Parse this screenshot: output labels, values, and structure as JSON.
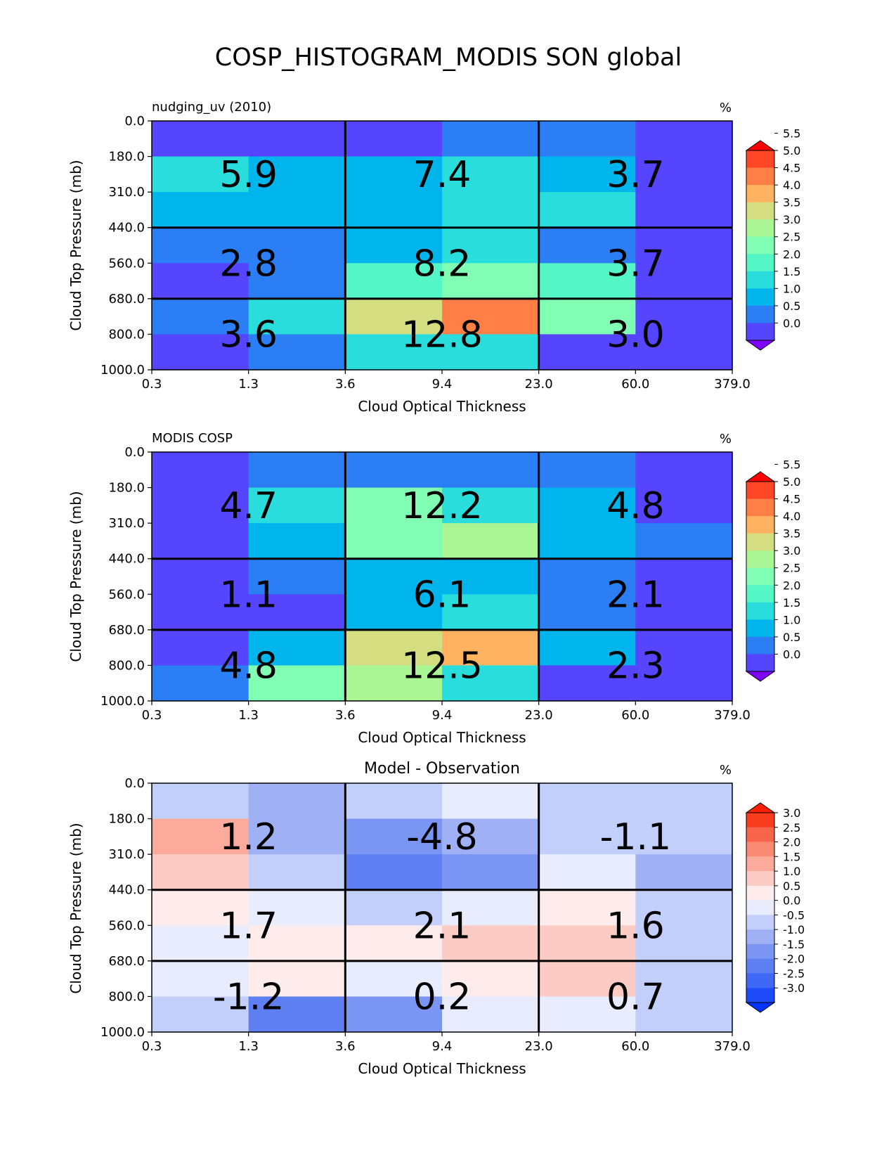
{
  "figure_title": "COSP_HISTOGRAM_MODIS SON global",
  "chart_data": [
    {
      "type": "heatmap",
      "title_left": "nudging_uv (2010)",
      "title_center": "",
      "units": "%",
      "xlabel": "Cloud Optical Thickness",
      "ylabel": "Cloud Top Pressure (mb)",
      "x_ticks": [
        "0.3",
        "1.3",
        "3.6",
        "9.4",
        "23.0",
        "60.0",
        "379.0"
      ],
      "y_ticks": [
        "0.0",
        "180.0",
        "310.0",
        "440.0",
        "560.0",
        "680.0",
        "800.0",
        "1000.0"
      ],
      "grid": [
        [
          0.3,
          0.3,
          0.3,
          0.8,
          0.8,
          0.3
        ],
        [
          1.8,
          1.3,
          1.3,
          1.8,
          1.3,
          0.3
        ],
        [
          1.3,
          1.3,
          1.3,
          1.8,
          1.8,
          0.3
        ],
        [
          0.8,
          0.8,
          1.3,
          1.8,
          0.8,
          0.3
        ],
        [
          0.3,
          0.8,
          2.3,
          2.8,
          2.3,
          0.3
        ],
        [
          0.8,
          1.8,
          3.8,
          4.8,
          2.8,
          0.3
        ],
        [
          0.3,
          0.8,
          1.8,
          1.8,
          0.3,
          0.3
        ]
      ],
      "block_values": [
        "5.9",
        "7.4",
        "3.7",
        "2.8",
        "8.2",
        "3.7",
        "3.6",
        "12.8",
        "3.0"
      ],
      "colorbar": {
        "levels": [
          "5.5",
          "5.0",
          "4.5",
          "4.0",
          "3.5",
          "3.0",
          "2.5",
          "2.0",
          "1.5",
          "1.0",
          "0.5",
          "0.0"
        ],
        "colors": [
          "#8000ff",
          "#5545fe",
          "#2b7ef4",
          "#00b4ec",
          "#2adddd",
          "#55f6c5",
          "#80ffb4",
          "#aaf695",
          "#d4dd80",
          "#ffb360",
          "#ff7f46",
          "#ff4727",
          "#ff0000"
        ]
      }
    },
    {
      "type": "heatmap",
      "title_left": "MODIS COSP",
      "title_center": "",
      "units": "%",
      "xlabel": "Cloud Optical Thickness",
      "ylabel": "Cloud Top Pressure (mb)",
      "x_ticks": [
        "0.3",
        "1.3",
        "3.6",
        "9.4",
        "23.0",
        "60.0",
        "379.0"
      ],
      "y_ticks": [
        "0.0",
        "180.0",
        "310.0",
        "440.0",
        "560.0",
        "680.0",
        "800.0",
        "1000.0"
      ],
      "grid": [
        [
          0.3,
          0.8,
          0.8,
          0.8,
          0.8,
          0.3
        ],
        [
          0.3,
          1.8,
          2.8,
          1.8,
          1.3,
          0.3
        ],
        [
          0.3,
          1.3,
          2.8,
          3.3,
          1.3,
          0.8
        ],
        [
          0.3,
          0.8,
          1.3,
          1.3,
          0.8,
          0.3
        ],
        [
          0.3,
          0.3,
          1.3,
          1.8,
          0.8,
          0.3
        ],
        [
          0.3,
          1.3,
          3.8,
          4.3,
          1.3,
          0.3
        ],
        [
          0.8,
          2.8,
          3.3,
          1.8,
          0.3,
          0.3
        ]
      ],
      "block_values": [
        "4.7",
        "12.2",
        "4.8",
        "1.1",
        "6.1",
        "2.1",
        "4.8",
        "12.5",
        "2.3"
      ],
      "colorbar": {
        "levels": [
          "5.5",
          "5.0",
          "4.5",
          "4.0",
          "3.5",
          "3.0",
          "2.5",
          "2.0",
          "1.5",
          "1.0",
          "0.5",
          "0.0"
        ],
        "colors": [
          "#8000ff",
          "#5545fe",
          "#2b7ef4",
          "#00b4ec",
          "#2adddd",
          "#55f6c5",
          "#80ffb4",
          "#aaf695",
          "#d4dd80",
          "#ffb360",
          "#ff7f46",
          "#ff4727",
          "#ff0000"
        ]
      }
    },
    {
      "type": "heatmap",
      "title_left": "",
      "title_center": "Model - Observation",
      "units": "%",
      "xlabel": "Cloud Optical Thickness",
      "ylabel": "Cloud Top Pressure (mb)",
      "x_ticks": [
        "0.3",
        "1.3",
        "3.6",
        "9.4",
        "23.0",
        "60.0",
        "379.0"
      ],
      "y_ticks": [
        "0.0",
        "180.0",
        "310.0",
        "440.0",
        "560.0",
        "680.0",
        "800.0",
        "1000.0"
      ],
      "grid": [
        [
          -0.25,
          -0.75,
          -0.25,
          0.25,
          -0.25,
          -0.25
        ],
        [
          1.75,
          -0.75,
          -1.25,
          -0.75,
          -0.25,
          -0.25
        ],
        [
          1.25,
          -0.25,
          -1.75,
          -1.25,
          0.25,
          -0.75
        ],
        [
          0.75,
          0.25,
          -0.25,
          0.25,
          0.75,
          -0.25
        ],
        [
          0.25,
          0.75,
          0.75,
          1.25,
          1.25,
          -0.25
        ],
        [
          0.25,
          0.75,
          0.25,
          0.75,
          1.25,
          -0.25
        ],
        [
          -0.25,
          -1.75,
          -1.25,
          0.25,
          0.25,
          -0.25
        ]
      ],
      "block_values": [
        "1.2",
        "-4.8",
        "-1.1",
        "1.7",
        "2.1",
        "1.6",
        "-1.2",
        "0.2",
        "0.7"
      ],
      "colorbar": {
        "levels": [
          "3.0",
          "2.5",
          "2.0",
          "1.5",
          "1.0",
          "0.5",
          "0.0",
          "-0.5",
          "-1.0",
          "-1.5",
          "-2.0",
          "-2.5",
          "-3.0"
        ],
        "colors": [
          "#0033ff",
          "#1f4cfa",
          "#3e68f5",
          "#5d7ff2",
          "#7a95f2",
          "#9fb0f5",
          "#c3cffb",
          "#e8ecfd",
          "#fdeceb",
          "#fcccc4",
          "#fbaa9b",
          "#fa8a74",
          "#f8654a",
          "#f73d1e",
          "#ff2000"
        ]
      }
    }
  ]
}
